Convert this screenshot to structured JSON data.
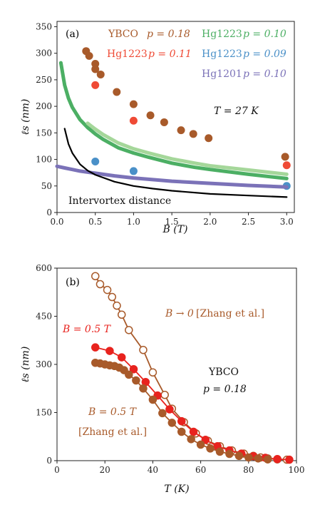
{
  "chart_data": [
    {
      "type": "scatter",
      "panel_label": "(a)",
      "xlabel": "B (T)",
      "ylabel": "ℓs (nm)",
      "xlim": [
        0,
        3.1
      ],
      "ylim": [
        0,
        360
      ],
      "x_ticks": [
        "0.0",
        "0.5",
        "1.0",
        "1.5",
        "2.0",
        "2.5",
        "3.0"
      ],
      "x_tick_values": [
        0,
        0.5,
        1.0,
        1.5,
        2.0,
        2.5,
        3.0
      ],
      "y_ticks": [
        "0",
        "50",
        "100",
        "150",
        "200",
        "250",
        "300",
        "350"
      ],
      "y_tick_values": [
        0,
        50,
        100,
        150,
        200,
        250,
        300,
        350
      ],
      "annotations": [
        "T = 27 K",
        "Intervortex distance"
      ],
      "colors": {
        "ybco": "#a85a2a",
        "hg1223_011": "#ef4a35",
        "hg1223_010": "#4caf64",
        "hg1223_010_light": "#a5d79a",
        "hg1223_009": "#4a90c8",
        "hg1201": "#7b72b8",
        "intervortex": "#000000"
      },
      "series": [
        {
          "name": "YBCO p = 0.18",
          "style": "markers",
          "color_key": "ybco",
          "points": [
            [
              0.38,
              304
            ],
            [
              0.42,
              295
            ],
            [
              0.5,
              280
            ],
            [
              0.5,
              270
            ],
            [
              0.57,
              260
            ],
            [
              0.78,
              227
            ],
            [
              1.0,
              204
            ],
            [
              1.22,
              183
            ],
            [
              1.4,
              170
            ],
            [
              1.62,
              155
            ],
            [
              1.78,
              148
            ],
            [
              1.98,
              140
            ],
            [
              2.98,
              105
            ]
          ]
        },
        {
          "name": "Hg1223 p = 0.11",
          "style": "markers",
          "color_key": "hg1223_011",
          "points": [
            [
              0.5,
              240
            ],
            [
              1.0,
              173
            ],
            [
              3.0,
              89
            ]
          ]
        },
        {
          "name": "Hg1223 p = 0.10",
          "style": "dense-line",
          "color_key": "hg1223_010",
          "x": [
            0.05,
            0.1,
            0.15,
            0.2,
            0.3,
            0.4,
            0.5,
            0.6,
            0.8,
            1.0,
            1.2,
            1.5,
            1.8,
            2.0,
            2.5,
            3.0
          ],
          "y": [
            282,
            240,
            215,
            198,
            175,
            160,
            148,
            138,
            122,
            112,
            104,
            93,
            85,
            81,
            72,
            64
          ]
        },
        {
          "name": "",
          "style": "dense-line",
          "color_key": "hg1223_010_light",
          "x": [
            0.4,
            0.5,
            0.6,
            0.8,
            1.0,
            1.2,
            1.5,
            1.8,
            2.0,
            2.5,
            3.0
          ],
          "y": [
            168,
            157,
            147,
            131,
            120,
            112,
            101,
            93,
            88,
            80,
            72
          ]
        },
        {
          "name": "Hg1223 p = 0.09",
          "style": "markers",
          "color_key": "hg1223_009",
          "points": [
            [
              0.5,
              96
            ],
            [
              1.0,
              78
            ],
            [
              3.0,
              50
            ]
          ]
        },
        {
          "name": "Hg1201 p = 0.10",
          "style": "dense-line",
          "color_key": "hg1201",
          "x": [
            0.0,
            0.1,
            0.2,
            0.3,
            0.5,
            0.75,
            1.0,
            1.5,
            2.0,
            2.5,
            3.0
          ],
          "y": [
            87,
            84,
            81,
            78,
            74,
            69,
            65,
            59,
            55,
            51,
            48
          ]
        },
        {
          "name": "Intervortex distance",
          "style": "line",
          "color_key": "intervortex",
          "x": [
            0.1,
            0.15,
            0.2,
            0.3,
            0.4,
            0.5,
            0.75,
            1.0,
            1.25,
            1.5,
            2.0,
            2.5,
            3.0
          ],
          "y": [
            158,
            129,
            112,
            91,
            79,
            71,
            58,
            50,
            45,
            41,
            35,
            32,
            29
          ]
        }
      ]
    },
    {
      "type": "line",
      "panel_label": "(b)",
      "xlabel": "T (K)",
      "ylabel": "ℓs (nm)",
      "xlim": [
        0,
        100
      ],
      "ylim": [
        0,
        600
      ],
      "x_ticks": [
        "0",
        "20",
        "40",
        "60",
        "80",
        "100"
      ],
      "x_tick_values": [
        0,
        20,
        40,
        60,
        80,
        100
      ],
      "y_ticks": [
        "0",
        "150",
        "300",
        "450",
        "600"
      ],
      "y_tick_values": [
        0,
        150,
        300,
        450,
        600
      ],
      "annotations": [
        "YBCO",
        "p = 0.18",
        "B = 0.5 T",
        "[Zhang et al.]"
      ],
      "colors": {
        "zhang": "#a85a2a",
        "this_work": "#e8231e"
      },
      "series": [
        {
          "name": "B → 0 [Zhang et al.]",
          "style": "open-markers-line",
          "color_key": "zhang",
          "x": [
            16,
            18,
            21,
            23,
            25,
            27,
            30,
            36,
            40,
            45,
            48,
            53,
            58,
            63,
            68,
            73,
            78,
            82,
            85,
            88,
            92,
            96
          ],
          "y": [
            575,
            550,
            532,
            510,
            483,
            455,
            407,
            345,
            275,
            205,
            162,
            120,
            85,
            62,
            45,
            32,
            22,
            15,
            10,
            7,
            4,
            3
          ]
        },
        {
          "name": "B = 0.5 T",
          "style": "filled-markers-line",
          "color_key": "this_work",
          "x": [
            16,
            22,
            27,
            32,
            37,
            42,
            47,
            52,
            57,
            62,
            67,
            72,
            77,
            82,
            87,
            92,
            97
          ],
          "y": [
            353,
            342,
            322,
            285,
            245,
            203,
            160,
            123,
            90,
            65,
            45,
            32,
            22,
            14,
            9,
            5,
            3
          ]
        },
        {
          "name": "B = 0.5 T [Zhang et al.]",
          "style": "filled-markers-line",
          "color_key": "zhang",
          "x": [
            16,
            18,
            20,
            22,
            24,
            26,
            28,
            30,
            33,
            36,
            40,
            44,
            48,
            52,
            56,
            60,
            64,
            68,
            72,
            76,
            80,
            84,
            88
          ],
          "y": [
            305,
            303,
            300,
            297,
            295,
            290,
            282,
            268,
            250,
            225,
            190,
            148,
            118,
            90,
            67,
            50,
            38,
            28,
            21,
            15,
            10,
            7,
            4
          ]
        }
      ]
    }
  ],
  "legend_a": {
    "ybco_name": "YBCO",
    "ybco_p": "p = 0.18",
    "hg1223_011_name": "Hg1223",
    "hg1223_011_p": "p = 0.11",
    "hg1223_010_name": "Hg1223",
    "hg1223_010_p": "p = 0.10",
    "hg1223_009_name": "Hg1223",
    "hg1223_009_p": "p = 0.09",
    "hg1201_name": "Hg1201",
    "hg1201_p": "p = 0.10",
    "temperature": "T = 27 K",
    "intervortex": "Intervortex distance"
  },
  "legend_b": {
    "zhang_b0_prefix": "B → 0",
    "zhang_b0_ref": "[Zhang et al.]",
    "this_work": "B = 0.5 T",
    "material": "YBCO",
    "doping": "p = 0.18",
    "zhang_field": "B = 0.5 T",
    "zhang_ref": "[Zhang et al.]"
  }
}
